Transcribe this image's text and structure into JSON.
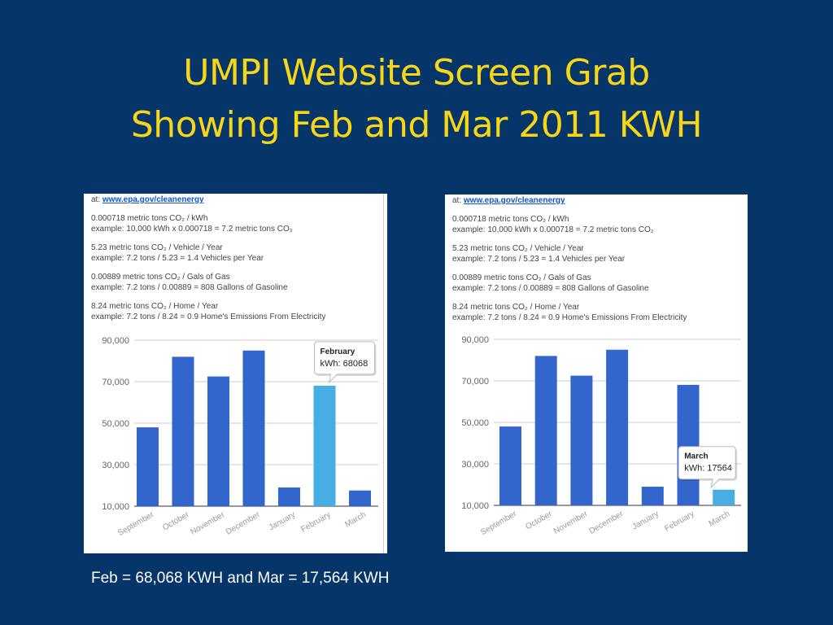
{
  "title": {
    "line1": "UMPI Website Screen Grab",
    "line2": "Showing Feb and Mar 2011 KWH"
  },
  "info": {
    "source_prefix": "at: ",
    "source_link": "www.epa.gov/cleanenergy",
    "blocks": [
      {
        "line1": "0.000718 metric tons CO₂ / kWh",
        "line2": "example: 10,000 kWh x 0.000718 = 7.2 metric tons CO₂"
      },
      {
        "line1": "5.23 metric tons CO₂ / Vehicle / Year",
        "line2": "example: 7.2 tons / 5.23 = 1.4 Vehicles per Year"
      },
      {
        "line1": "0.00889 metric tons CO₂ / Gals of Gas",
        "line2": "example: 7.2 tons / 0.00889 = 808 Gallons of Gasoline"
      },
      {
        "line1": "8.24 metric tons CO₂ / Home / Year",
        "line2": "example: 7.2 tons / 8.24 = 0.9 Home's Emissions From Electricity"
      }
    ]
  },
  "colors": {
    "bar": "#3366cc",
    "bar_highlight": "#47aee3",
    "grid": "#cccccc",
    "axis_text": "#666666"
  },
  "chart_data": [
    {
      "type": "bar",
      "categories": [
        "September",
        "October",
        "November",
        "December",
        "January",
        "February",
        "March"
      ],
      "values": [
        48000,
        82000,
        72500,
        85000,
        19000,
        68068,
        17564
      ],
      "ylim": [
        10000,
        90000
      ],
      "yticks": [
        "10,000",
        "30,000",
        "50,000",
        "70,000",
        "90,000"
      ],
      "ytick_values": [
        10000,
        30000,
        50000,
        70000,
        90000
      ],
      "highlight_index": 5,
      "tooltip": {
        "title": "February",
        "text": "kWh: 68068"
      },
      "grid": true
    },
    {
      "type": "bar",
      "categories": [
        "September",
        "October",
        "November",
        "December",
        "January",
        "February",
        "March"
      ],
      "values": [
        48000,
        82000,
        72500,
        85000,
        19000,
        68068,
        17564
      ],
      "ylim": [
        10000,
        90000
      ],
      "yticks": [
        "10,000",
        "30,000",
        "50,000",
        "70,000",
        "90,000"
      ],
      "ytick_values": [
        10000,
        30000,
        50000,
        70000,
        90000
      ],
      "highlight_index": 6,
      "tooltip": {
        "title": "March",
        "text": "kWh: 17564"
      },
      "grid": true
    }
  ],
  "caption": "Feb = 68,068 KWH and Mar = 17,564 KWH"
}
